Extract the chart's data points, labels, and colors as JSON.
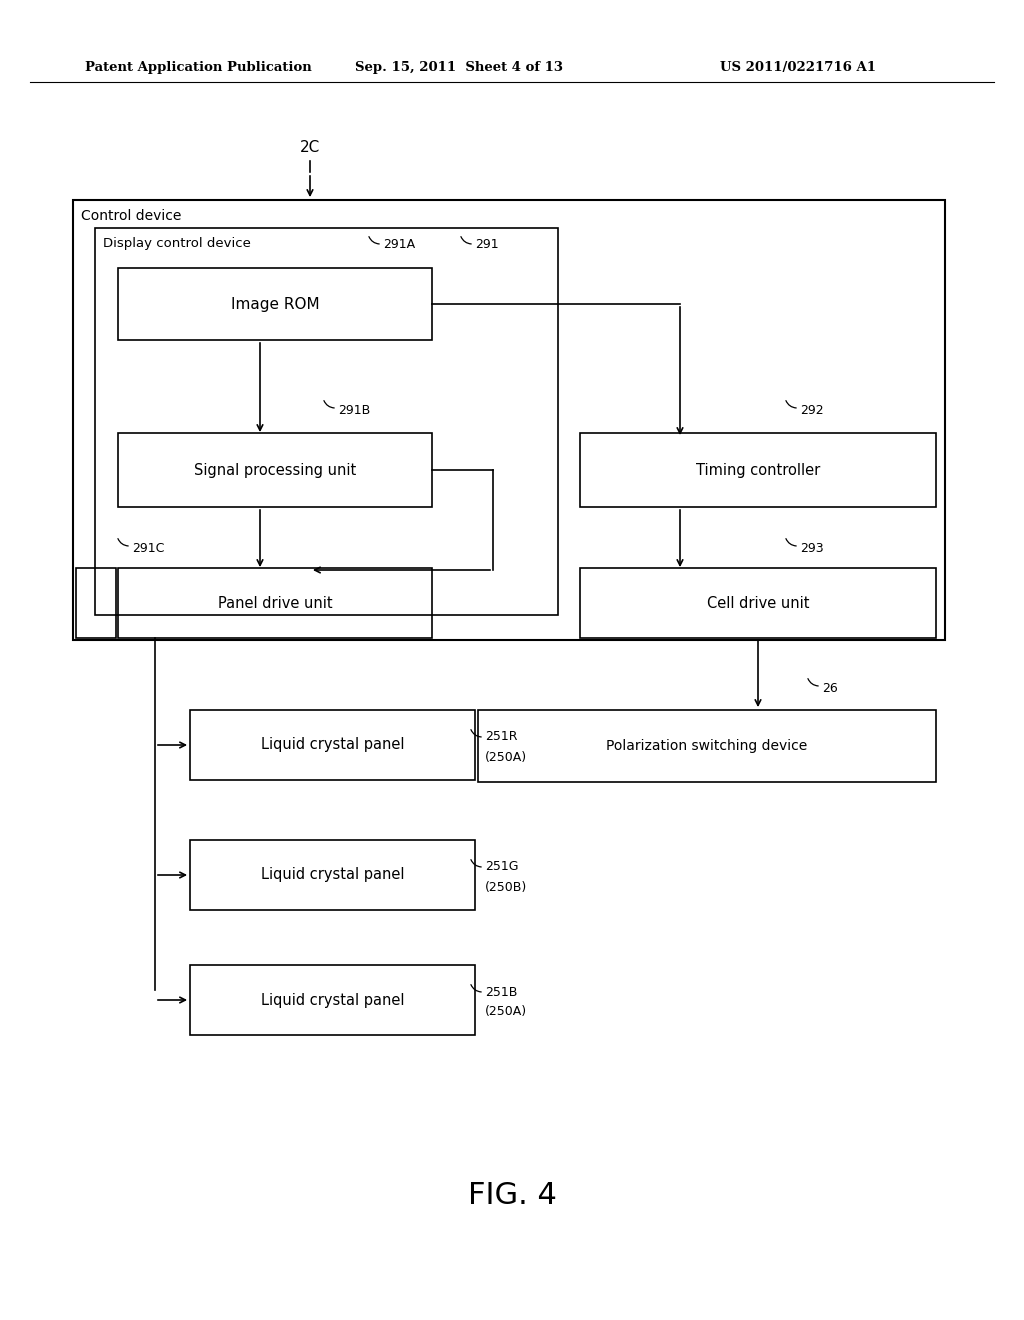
{
  "bg_color": "#ffffff",
  "header_left": "Patent Application Publication",
  "header_mid": "Sep. 15, 2011  Sheet 4 of 13",
  "header_right": "US 2011/0221716 A1",
  "fig_label": "FIG. 4",
  "label_2C": "2C",
  "label_control_device": "Control device",
  "label_display_control_device": "Display control device",
  "label_291A": "291A",
  "label_291": "291",
  "label_image_rom": "Image ROM",
  "label_291B": "291B",
  "label_signal_proc": "Signal processing unit",
  "label_292": "292",
  "label_timing_ctrl": "Timing controller",
  "label_291C": "291C",
  "label_panel_drive": "Panel drive unit",
  "label_293": "293",
  "label_cell_drive": "Cell drive unit",
  "label_26": "26",
  "label_pol_switch": "Polarization switching device",
  "label_lcp1": "Liquid crystal panel",
  "label_251R": "251R",
  "label_250A1": "(250A)",
  "label_lcp2": "Liquid crystal panel",
  "label_251G": "251G",
  "label_250B": "(250B)",
  "label_lcp3": "Liquid crystal panel",
  "label_251B": "251B",
  "label_250A2": "(250A)"
}
